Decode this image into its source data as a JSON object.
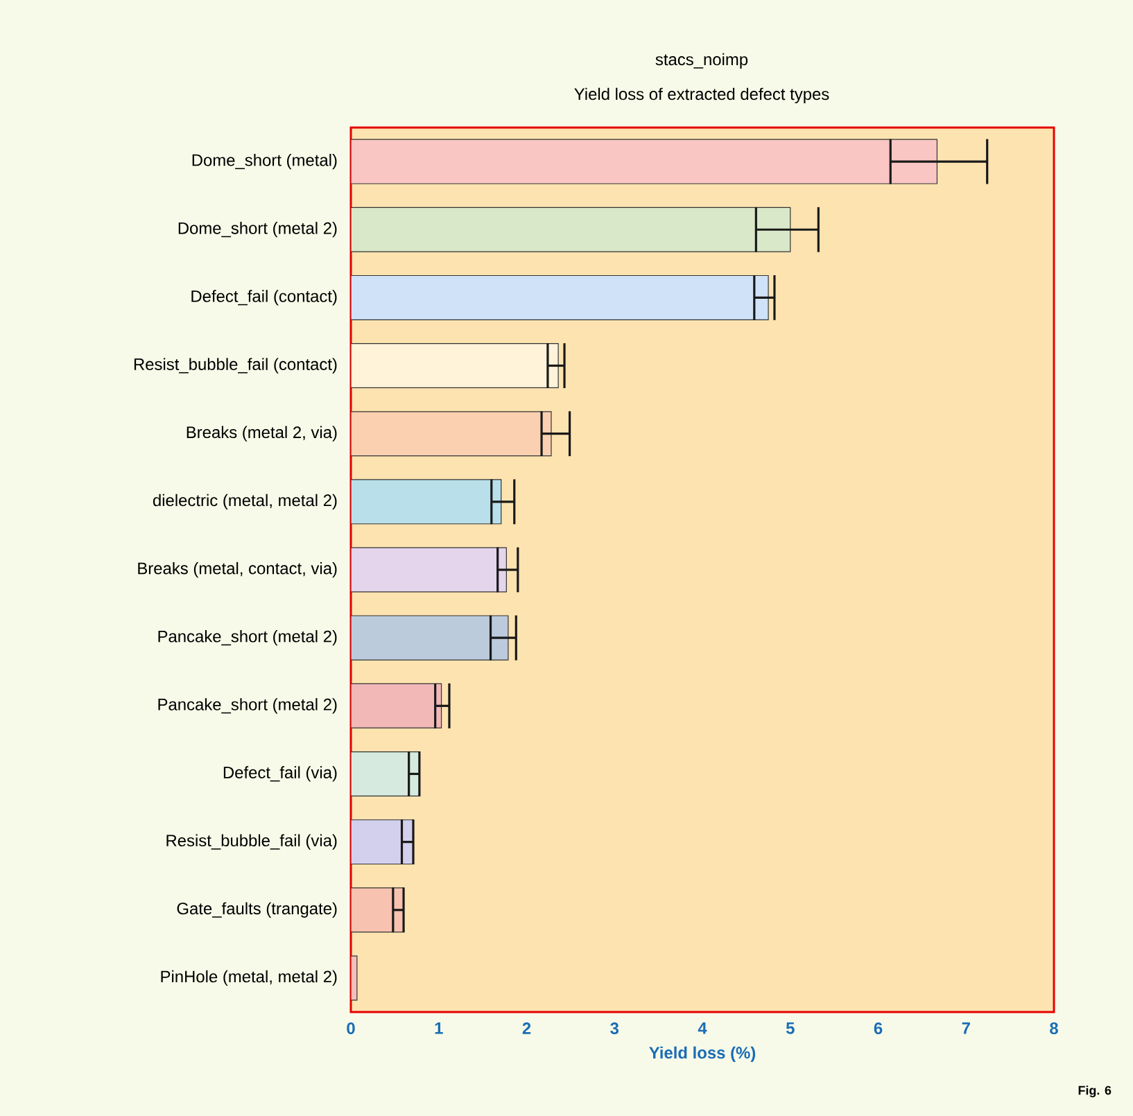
{
  "chart_data": {
    "type": "bar",
    "orientation": "horizontal",
    "title": "stacs_noimp",
    "subtitle": "Yield loss of extracted defect types",
    "xlabel": "Yield loss (%)",
    "categories": [
      "Dome_short (metal)",
      "Dome_short (metal 2)",
      "Defect_fail (contact)",
      "Resist_bubble_fail (contact)",
      "Breaks (metal 2, via)",
      "dielectric (metal, metal 2)",
      "Breaks (metal, contact, via)",
      "Pancake_short (metal 2)",
      "Pancake_short (metal 2)",
      "Defect_fail (via)",
      "Resist_bubble_fail (via)",
      "Gate_faults (trangate)",
      "PinHole (metal, metal 2)"
    ],
    "values": [
      6.67,
      5.0,
      4.75,
      2.36,
      2.28,
      1.71,
      1.77,
      1.79,
      1.03,
      0.78,
      0.71,
      0.6,
      0.07
    ],
    "errors": [
      [
        6.14,
        7.24
      ],
      [
        4.61,
        5.32
      ],
      [
        4.59,
        4.82
      ],
      [
        2.24,
        2.43
      ],
      [
        2.17,
        2.49
      ],
      [
        1.6,
        1.86
      ],
      [
        1.67,
        1.9
      ],
      [
        1.59,
        1.88
      ],
      [
        0.96,
        1.12
      ],
      [
        0.66,
        0.78
      ],
      [
        0.58,
        0.71
      ],
      [
        0.48,
        0.6
      ],
      null
    ],
    "colors": [
      "#f9c6c4",
      "#d9e8c8",
      "#cfe2f7",
      "#fff3da",
      "#fbd0b0",
      "#b9e0ea",
      "#e4d5ec",
      "#bccbdc",
      "#f2b8b8",
      "#d6eadf",
      "#d3d0ee",
      "#f8c2b0",
      "#f5c0b8"
    ],
    "xlim": [
      0,
      8
    ],
    "xticks": [
      0,
      1,
      2,
      3,
      4,
      5,
      6,
      7,
      8
    ],
    "grid": false,
    "annotations": [
      "Fig. 6"
    ]
  }
}
